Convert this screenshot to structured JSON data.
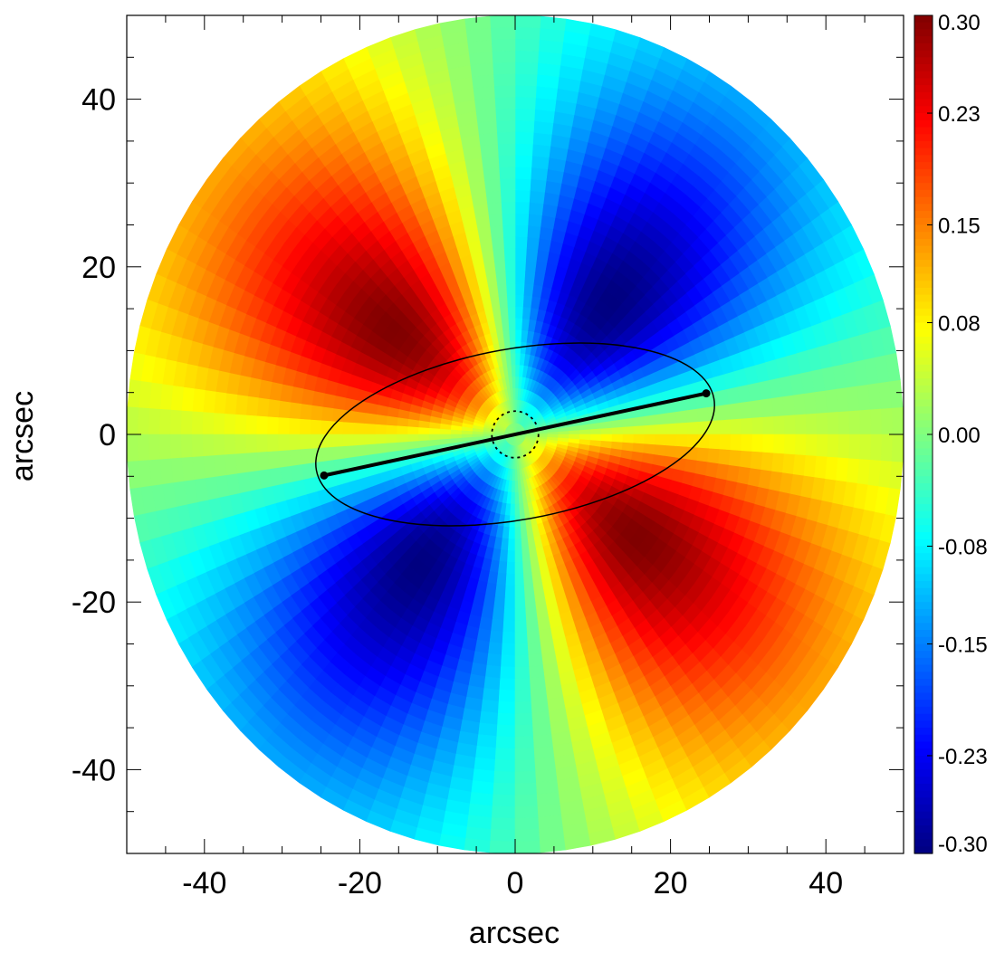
{
  "chart_data": {
    "type": "heatmap",
    "title": "",
    "xlabel": "arcsec",
    "ylabel": "arcsec",
    "xlim": [
      -50,
      50
    ],
    "ylim": [
      -50,
      50
    ],
    "x_major_ticks": [
      -40,
      -20,
      0,
      20,
      40
    ],
    "y_major_ticks": [
      -40,
      -20,
      0,
      20,
      40
    ],
    "x_tick_labels": [
      "-40",
      "-20",
      "0",
      "20",
      "40"
    ],
    "y_tick_labels": [
      "-40",
      "-20",
      "0",
      "20",
      "40"
    ],
    "minor_tick_step": 5,
    "grid": false,
    "field": {
      "shape": "disk",
      "radius": 50,
      "grid": "polar",
      "radial_bins": 36,
      "angular_bins": 96,
      "pattern": "quadrupole",
      "amplitude": 0.3,
      "peak_radius": 20,
      "red_lobe_axis_pa_deg": 7,
      "note_values": "positive lobes upper-left-east and lower-right, negative lobes upper-right and lower-left"
    },
    "colorbar": {
      "min": -0.3,
      "max": 0.3,
      "colormap": "jet",
      "placement": "right",
      "tick_values": [
        0.3,
        0.23,
        0.15,
        0.08,
        0.0,
        -0.08,
        -0.15,
        -0.23,
        -0.3
      ],
      "tick_labels": [
        "0.30",
        "0.23",
        "0.15",
        "0.08",
        "0.00",
        "-0.08",
        "-0.15",
        "-0.23",
        "-0.30"
      ]
    },
    "overlays": {
      "ellipse": {
        "center": [
          0,
          0
        ],
        "semi_major": 26,
        "semi_minor": 11,
        "pa_deg": 10.2
      },
      "major_axis_line": {
        "x": [
          -24.6,
          24.6
        ],
        "y": [
          -4.9,
          4.9
        ],
        "endpoints_marked": true
      },
      "inner_circle": {
        "center": [
          0,
          0
        ],
        "radius": 3,
        "style": "dotted"
      }
    },
    "colors": {
      "frame": "#000000",
      "overlay": "#000000"
    }
  }
}
